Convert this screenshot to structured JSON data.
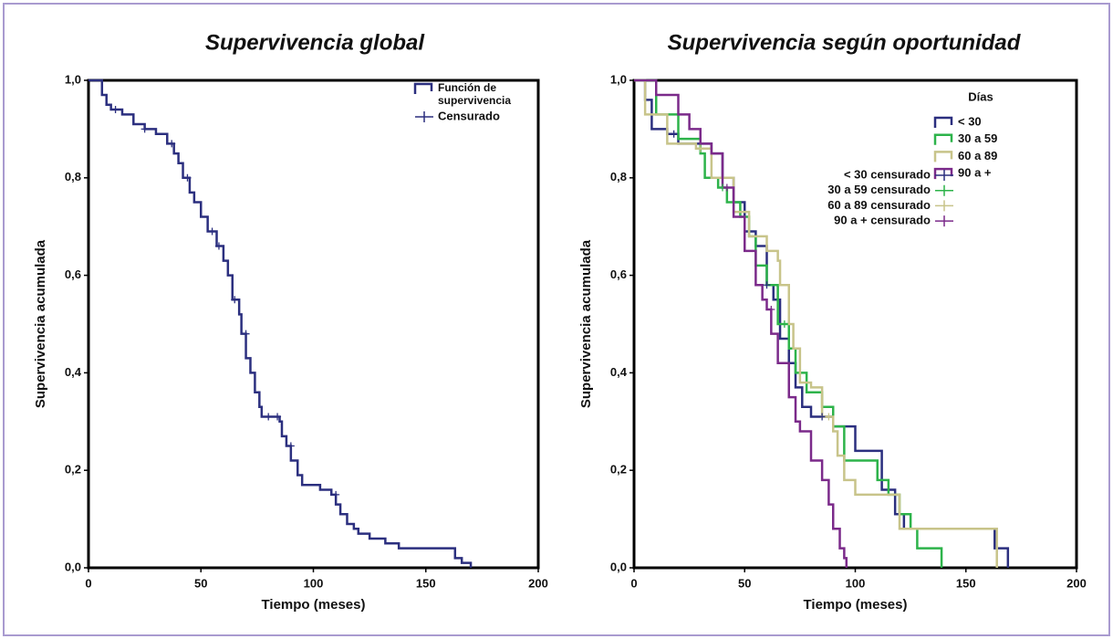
{
  "chart_data": [
    {
      "type": "step",
      "title": "Supervivencia global",
      "x_label": "Tiempo (meses)",
      "y_label": "Supervivencia acumulada",
      "xlim": [
        0,
        200
      ],
      "xticks": [
        0,
        50,
        100,
        150,
        200
      ],
      "ylim": [
        0,
        1
      ],
      "yticks": [
        {
          "value": 0,
          "label": "0,0"
        },
        {
          "value": 0.2,
          "label": "0,2"
        },
        {
          "value": 0.4,
          "label": "0,4"
        },
        {
          "value": 0.6,
          "label": "0,6"
        },
        {
          "value": 0.8,
          "label": "0,8"
        },
        {
          "value": 1,
          "label": "1,0"
        }
      ],
      "series": [
        {
          "name": "Función de supervivencia",
          "color": "#2b2f7f",
          "x": [
            0,
            5,
            6,
            8,
            10,
            15,
            20,
            25,
            30,
            35,
            38,
            40,
            42,
            45,
            47,
            50,
            53,
            57,
            60,
            62,
            64,
            67,
            68,
            70,
            72,
            74,
            76,
            77,
            85,
            86,
            88,
            90,
            93,
            95,
            100,
            103,
            108,
            110,
            112,
            115,
            118,
            120,
            125,
            132,
            138,
            150,
            162,
            163,
            166,
            170
          ],
          "values": [
            1,
            1,
            0.97,
            0.95,
            0.94,
            0.93,
            0.91,
            0.9,
            0.89,
            0.87,
            0.85,
            0.83,
            0.8,
            0.77,
            0.75,
            0.72,
            0.69,
            0.66,
            0.63,
            0.6,
            0.55,
            0.52,
            0.48,
            0.43,
            0.4,
            0.36,
            0.33,
            0.31,
            0.3,
            0.27,
            0.25,
            0.22,
            0.19,
            0.17,
            0.17,
            0.16,
            0.15,
            0.13,
            0.11,
            0.09,
            0.08,
            0.07,
            0.06,
            0.05,
            0.04,
            0.04,
            0.04,
            0.02,
            0.01,
            0
          ]
        },
        {
          "name": "Censurado",
          "color": "#2b2f7f",
          "marker": "plus",
          "x": [
            12,
            25,
            37,
            44,
            55,
            58,
            65,
            70,
            80,
            84,
            90,
            110
          ],
          "values": [
            0.94,
            0.9,
            0.87,
            0.8,
            0.69,
            0.66,
            0.55,
            0.48,
            0.31,
            0.31,
            0.25,
            0.15
          ]
        }
      ]
    },
    {
      "type": "step",
      "title": "Supervivencia según oportunidad",
      "x_label": "Tiempo (meses)",
      "y_label": "Supervivencia acumulada",
      "legend_title": "Días",
      "xlim": [
        0,
        200
      ],
      "xticks": [
        0,
        50,
        100,
        150,
        200
      ],
      "ylim": [
        0,
        1
      ],
      "yticks": [
        {
          "value": 0,
          "label": "0,0"
        },
        {
          "value": 0.2,
          "label": "0,2"
        },
        {
          "value": 0.4,
          "label": "0,4"
        },
        {
          "value": 0.6,
          "label": "0,6"
        },
        {
          "value": 0.8,
          "label": "0,8"
        },
        {
          "value": 1,
          "label": "1,0"
        }
      ],
      "series": [
        {
          "name": "< 30",
          "color": "#2b2f7f",
          "x": [
            0,
            5,
            8,
            15,
            20,
            35,
            40,
            45,
            50,
            55,
            60,
            63,
            66,
            70,
            73,
            76,
            80,
            90,
            100,
            110,
            112,
            118,
            122,
            160,
            163,
            169
          ],
          "values": [
            1,
            0.96,
            0.9,
            0.89,
            0.87,
            0.85,
            0.8,
            0.75,
            0.69,
            0.66,
            0.58,
            0.55,
            0.47,
            0.42,
            0.37,
            0.33,
            0.31,
            0.29,
            0.24,
            0.24,
            0.16,
            0.11,
            0.08,
            0.08,
            0.04,
            0
          ]
        },
        {
          "name": "30 a 59",
          "color": "#2db34a",
          "x": [
            0,
            10,
            20,
            30,
            32,
            38,
            42,
            48,
            52,
            55,
            60,
            65,
            70,
            73,
            78,
            85,
            90,
            95,
            105,
            110,
            115,
            120,
            125,
            128,
            135,
            139
          ],
          "values": [
            1,
            0.93,
            0.88,
            0.85,
            0.8,
            0.78,
            0.75,
            0.72,
            0.68,
            0.62,
            0.58,
            0.5,
            0.45,
            0.4,
            0.36,
            0.33,
            0.29,
            0.22,
            0.22,
            0.18,
            0.15,
            0.11,
            0.08,
            0.04,
            0.04,
            0
          ]
        },
        {
          "name": "60 a 89",
          "color": "#c8c48a",
          "x": [
            0,
            5,
            15,
            28,
            35,
            45,
            52,
            60,
            65,
            66,
            70,
            72,
            75,
            80,
            85,
            90,
            92,
            95,
            100,
            115,
            120,
            160,
            164
          ],
          "values": [
            1,
            0.93,
            0.87,
            0.86,
            0.8,
            0.73,
            0.68,
            0.65,
            0.63,
            0.58,
            0.5,
            0.45,
            0.38,
            0.37,
            0.31,
            0.28,
            0.23,
            0.18,
            0.15,
            0.15,
            0.08,
            0.08,
            0
          ]
        },
        {
          "name": "90 a +",
          "color": "#7b2a8a",
          "x": [
            0,
            10,
            20,
            25,
            30,
            35,
            40,
            45,
            50,
            55,
            58,
            60,
            62,
            65,
            70,
            73,
            75,
            80,
            85,
            88,
            90,
            93,
            95,
            96
          ],
          "values": [
            1,
            0.97,
            0.93,
            0.9,
            0.87,
            0.85,
            0.78,
            0.72,
            0.65,
            0.58,
            0.55,
            0.53,
            0.48,
            0.42,
            0.35,
            0.3,
            0.28,
            0.22,
            0.18,
            0.13,
            0.08,
            0.04,
            0.02,
            0
          ]
        },
        {
          "name": "< 30 censurado",
          "color": "#2b2f7f",
          "marker": "plus",
          "x": [
            18,
            60,
            85
          ],
          "values": [
            0.89,
            0.58,
            0.31
          ]
        },
        {
          "name": "30 a 59 censurado",
          "color": "#2db34a",
          "marker": "plus",
          "x": [
            40,
            68
          ],
          "values": [
            0.78,
            0.5
          ]
        },
        {
          "name": "60 a 89 censurado",
          "color": "#c8c48a",
          "marker": "plus",
          "x": [
            30,
            88
          ],
          "values": [
            0.86,
            0.31
          ]
        },
        {
          "name": "90 a + censurado",
          "color": "#7b2a8a",
          "marker": "plus",
          "x": [
            42,
            62
          ],
          "values": [
            0.78,
            0.53
          ]
        }
      ]
    }
  ]
}
